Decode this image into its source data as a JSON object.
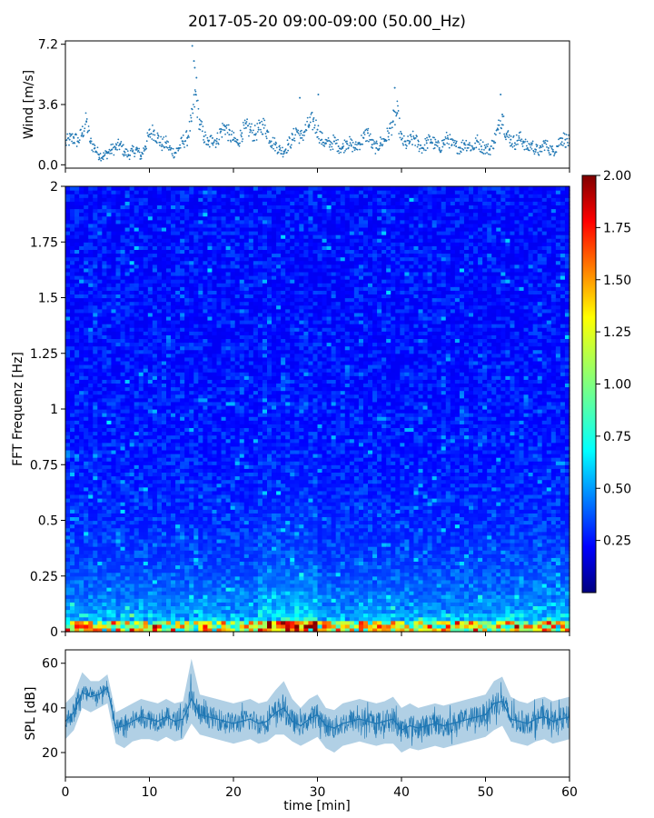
{
  "figure": {
    "title": "2017-05-20 09:00-09:00 (50.00_Hz)"
  },
  "chart_data": [
    {
      "panel": "wind",
      "type": "scatter",
      "ylabel": "Wind [m/s]",
      "xlim": [
        0,
        60
      ],
      "ylim": [
        -0.2,
        7.4
      ],
      "yticks": [
        0.0,
        3.6,
        7.2
      ],
      "ytick_labels": [
        "0.0",
        "3.6",
        "7.2"
      ],
      "series_color": "#1f77b4",
      "x": [
        0,
        0.5,
        1,
        1.5,
        2,
        2.5,
        3,
        3.5,
        4,
        4.5,
        5,
        5.5,
        6,
        6.5,
        7,
        7.5,
        8,
        8.5,
        9,
        9.5,
        10,
        10.5,
        11,
        11.5,
        12,
        12.5,
        13,
        13.5,
        14,
        14.5,
        15,
        15.5,
        16,
        16.5,
        17,
        17.5,
        18,
        18.5,
        19,
        19.5,
        20,
        20.5,
        21,
        21.5,
        22,
        22.5,
        23,
        23.5,
        24,
        24.5,
        25,
        25.5,
        26,
        26.5,
        27,
        27.5,
        28,
        28.5,
        29,
        29.5,
        30,
        30.5,
        31,
        31.5,
        32,
        32.5,
        33,
        33.5,
        34,
        34.5,
        35,
        35.5,
        36,
        36.5,
        37,
        37.5,
        38,
        38.5,
        39,
        39.5,
        40,
        40.5,
        41,
        41.5,
        42,
        42.5,
        43,
        43.5,
        44,
        44.5,
        45,
        45.5,
        46,
        46.5,
        47,
        47.5,
        48,
        48.5,
        49,
        49.5,
        50,
        50.5,
        51,
        51.5,
        52,
        52.5,
        53,
        53.5,
        54,
        54.5,
        55,
        55.5,
        56,
        56.5,
        57,
        57.5,
        58,
        58.5,
        59,
        59.5,
        60
      ],
      "y": [
        1.3,
        1.5,
        1.6,
        1.4,
        1.9,
        2.6,
        1.3,
        1.0,
        0.6,
        0.5,
        0.7,
        0.9,
        1.0,
        1.2,
        0.8,
        0.6,
        0.8,
        0.9,
        0.5,
        1.1,
        1.8,
        2.0,
        1.6,
        1.2,
        1.3,
        0.9,
        0.7,
        1.0,
        1.4,
        1.6,
        2.6,
        4.2,
        2.4,
        1.7,
        1.2,
        1.6,
        1.4,
        2.0,
        2.3,
        1.8,
        1.5,
        1.3,
        1.9,
        2.2,
        2.1,
        1.8,
        2.1,
        2.4,
        2.0,
        1.4,
        1.2,
        0.9,
        0.8,
        1.2,
        1.5,
        2.1,
        1.6,
        2.0,
        2.4,
        2.6,
        2.1,
        1.5,
        1.3,
        1.2,
        1.4,
        1.1,
        1.0,
        1.4,
        1.2,
        1.0,
        1.3,
        1.6,
        1.9,
        1.2,
        1.0,
        1.3,
        1.5,
        1.9,
        2.6,
        3.1,
        1.5,
        1.2,
        1.4,
        1.6,
        1.2,
        1.0,
        1.3,
        1.5,
        1.2,
        1.0,
        1.3,
        1.6,
        1.2,
        1.1,
        1.0,
        1.3,
        1.2,
        1.0,
        1.4,
        1.1,
        1.0,
        0.9,
        1.4,
        2.1,
        3.0,
        1.8,
        1.5,
        1.3,
        1.6,
        1.4,
        1.0,
        1.2,
        0.9,
        0.8,
        1.3,
        1.0,
        0.8,
        1.1,
        1.6,
        1.5,
        1.3
      ]
    },
    {
      "panel": "spectrogram",
      "type": "heatmap",
      "ylabel": "FFT Frequenz [Hz]",
      "xlim": [
        0,
        60
      ],
      "ylim": [
        0,
        2
      ],
      "yticks": [
        0,
        0.25,
        0.5,
        0.75,
        1,
        1.25,
        1.5,
        1.75,
        2
      ],
      "ytick_labels": [
        "0",
        "0.25",
        "0.5",
        "0.75",
        "1",
        "1.25",
        "1.5",
        "1.75",
        "2"
      ],
      "colormap": "jet",
      "colorbar": {
        "vmin": 0,
        "vmax": 2,
        "ticks": [
          0.25,
          0.5,
          0.75,
          1.0,
          1.25,
          1.5,
          1.75,
          2.0
        ],
        "tick_labels": [
          "0.25",
          "0.50",
          "0.75",
          "1.00",
          "1.25",
          "1.50",
          "1.75",
          "2.00"
        ]
      }
    },
    {
      "panel": "spl",
      "type": "line",
      "ylabel": "SPL [dB]",
      "xlabel": "time [min]",
      "xlim": [
        0,
        60
      ],
      "ylim": [
        9,
        66
      ],
      "xticks": [
        0,
        10,
        20,
        30,
        40,
        50,
        60
      ],
      "xtick_labels": [
        "0",
        "10",
        "20",
        "30",
        "40",
        "50",
        "60"
      ],
      "yticks": [
        20,
        40,
        60
      ],
      "ytick_labels": [
        "20",
        "40",
        "60"
      ],
      "series_color": "#1f77b4",
      "x": [
        0,
        1,
        2,
        3,
        4,
        5,
        6,
        7,
        8,
        9,
        10,
        11,
        12,
        13,
        14,
        15,
        16,
        17,
        18,
        19,
        20,
        21,
        22,
        23,
        24,
        25,
        26,
        27,
        28,
        29,
        30,
        31,
        32,
        33,
        34,
        35,
        36,
        37,
        38,
        39,
        40,
        41,
        42,
        43,
        44,
        45,
        46,
        47,
        48,
        49,
        50,
        51,
        52,
        53,
        54,
        55,
        56,
        57,
        58,
        59,
        60
      ],
      "y": [
        34,
        38,
        47,
        45,
        46,
        49,
        31,
        32,
        34,
        36,
        35,
        34,
        36,
        34,
        35,
        44,
        37,
        36,
        35,
        34,
        33,
        34,
        35,
        33,
        34,
        38,
        40,
        34,
        32,
        35,
        37,
        32,
        31,
        33,
        34,
        35,
        34,
        33,
        34,
        35,
        30,
        32,
        31,
        32,
        33,
        32,
        33,
        34,
        35,
        36,
        37,
        42,
        43,
        35,
        34,
        33,
        35,
        36,
        34,
        35,
        36
      ],
      "y_low": [
        26,
        30,
        40,
        38,
        40,
        42,
        24,
        22,
        25,
        26,
        26,
        25,
        27,
        25,
        26,
        33,
        28,
        27,
        26,
        25,
        24,
        25,
        26,
        24,
        25,
        28,
        28,
        25,
        23,
        25,
        27,
        22,
        20,
        23,
        24,
        25,
        24,
        23,
        24,
        24,
        20,
        22,
        21,
        22,
        23,
        22,
        23,
        24,
        25,
        26,
        27,
        30,
        32,
        25,
        24,
        23,
        25,
        26,
        24,
        25,
        26
      ],
      "y_high": [
        42,
        46,
        56,
        52,
        52,
        55,
        38,
        40,
        42,
        44,
        43,
        42,
        44,
        42,
        43,
        62,
        46,
        45,
        44,
        43,
        42,
        43,
        44,
        42,
        43,
        48,
        52,
        44,
        40,
        44,
        46,
        40,
        39,
        42,
        43,
        44,
        43,
        42,
        43,
        45,
        40,
        42,
        40,
        41,
        42,
        41,
        42,
        43,
        44,
        45,
        46,
        52,
        54,
        45,
        43,
        42,
        44,
        45,
        43,
        44,
        45
      ]
    }
  ]
}
